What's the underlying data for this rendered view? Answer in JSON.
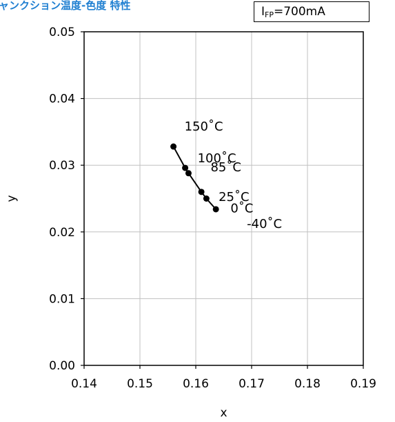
{
  "header": {
    "title": "ャンクション温度-色度 特性",
    "condition": {
      "symbol": "I",
      "subscript": "FP",
      "value": "=700mA"
    }
  },
  "chart_data": {
    "type": "line",
    "xlabel": "x",
    "ylabel": "y",
    "xlim": [
      0.14,
      0.19
    ],
    "ylim": [
      0.0,
      0.05
    ],
    "xticks": [
      "0.14",
      "0.15",
      "0.16",
      "0.17",
      "0.18",
      "0.19"
    ],
    "yticks": [
      "0.00",
      "0.01",
      "0.02",
      "0.03",
      "0.04",
      "0.05"
    ],
    "grid": true,
    "series": [
      {
        "points": [
          {
            "x": 0.156,
            "y": 0.0328,
            "label": "150˚C"
          },
          {
            "x": 0.1581,
            "y": 0.0296,
            "label": "100˚C"
          },
          {
            "x": 0.1587,
            "y": 0.0288,
            "label": "85˚C"
          },
          {
            "x": 0.161,
            "y": 0.026,
            "label": "25˚C"
          },
          {
            "x": 0.1619,
            "y": 0.025,
            "label": "0˚C"
          },
          {
            "x": 0.1636,
            "y": 0.0234,
            "label": "-40˚C"
          }
        ]
      }
    ],
    "color": "#000000",
    "grid_color": "#c0c0c0",
    "title_color": "#1f7fd1"
  }
}
